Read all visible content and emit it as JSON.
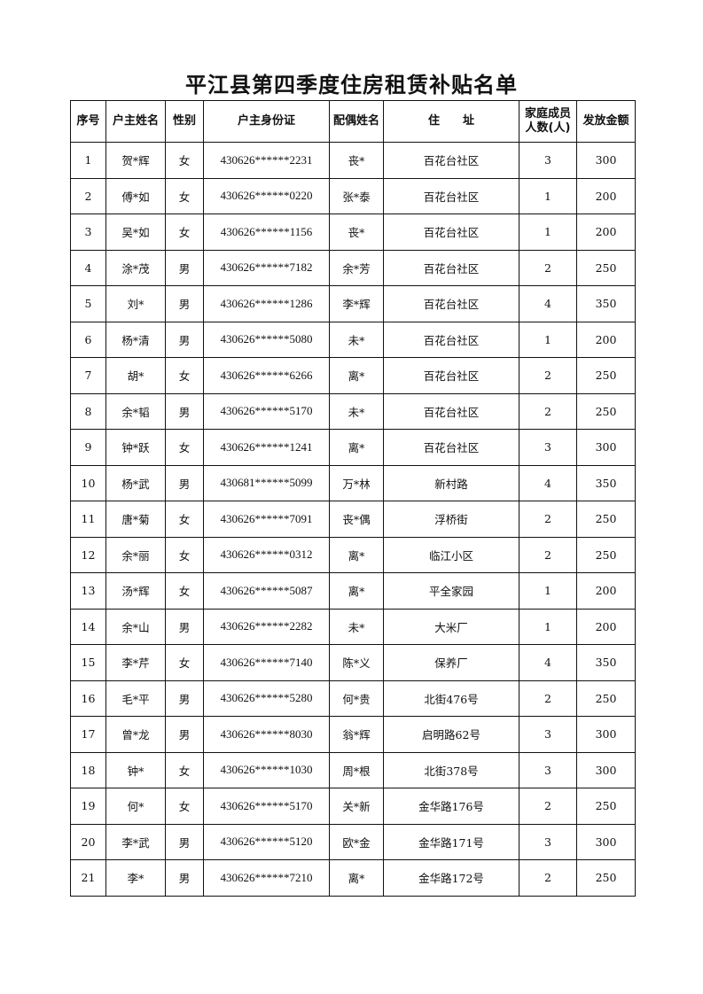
{
  "title": "平江县第四季度住房租赁补贴名单",
  "headers": [
    "序号",
    "户主姓名",
    "性别",
    "户主身份证",
    "配偶姓名",
    "住　　址",
    "家庭成员人数(人)",
    "发放金额"
  ],
  "rows": [
    [
      "1",
      "贺*辉",
      "女",
      "430626******2231",
      "丧*",
      "百花台社区",
      "3",
      "300"
    ],
    [
      "2",
      "傅*如",
      "女",
      "430626******0220",
      "张*泰",
      "百花台社区",
      "1",
      "200"
    ],
    [
      "3",
      "吴*如",
      "女",
      "430626******1156",
      "丧*",
      "百花台社区",
      "1",
      "200"
    ],
    [
      "4",
      "涂*茂",
      "男",
      "430626******7182",
      "余*芳",
      "百花台社区",
      "2",
      "250"
    ],
    [
      "5",
      "刘*",
      "男",
      "430626******1286",
      "李*辉",
      "百花台社区",
      "4",
      "350"
    ],
    [
      "6",
      "杨*清",
      "男",
      "430626******5080",
      "未*",
      "百花台社区",
      "1",
      "200"
    ],
    [
      "7",
      "胡*",
      "女",
      "430626******6266",
      "离*",
      "百花台社区",
      "2",
      "250"
    ],
    [
      "8",
      "余*韬",
      "男",
      "430626******5170",
      "未*",
      "百花台社区",
      "2",
      "250"
    ],
    [
      "9",
      "钟*跃",
      "女",
      "430626******1241",
      "离*",
      "百花台社区",
      "3",
      "300"
    ],
    [
      "10",
      "杨*武",
      "男",
      "430681******5099",
      "万*林",
      "新村路",
      "4",
      "350"
    ],
    [
      "11",
      "唐*菊",
      "女",
      "430626******7091",
      "丧*偶",
      "浮桥街",
      "2",
      "250"
    ],
    [
      "12",
      "余*丽",
      "女",
      "430626******0312",
      "离*",
      "临江小区",
      "2",
      "250"
    ],
    [
      "13",
      "汤*辉",
      "女",
      "430626******5087",
      "离*",
      "平全家园",
      "1",
      "200"
    ],
    [
      "14",
      "余*山",
      "男",
      "430626******2282",
      "未*",
      "大米厂",
      "1",
      "200"
    ],
    [
      "15",
      "李*芹",
      "女",
      "430626******7140",
      "陈*义",
      "保养厂",
      "4",
      "350"
    ],
    [
      "16",
      "毛*平",
      "男",
      "430626******5280",
      "何*贵",
      "北街476号",
      "2",
      "250"
    ],
    [
      "17",
      "曾*龙",
      "男",
      "430626******8030",
      "翁*辉",
      "启明路62号",
      "3",
      "300"
    ],
    [
      "18",
      "钟*",
      "女",
      "430626******1030",
      "周*根",
      "北街378号",
      "3",
      "300"
    ],
    [
      "19",
      "何*",
      "女",
      "430626******5170",
      "关*新",
      "金华路176号",
      "2",
      "250"
    ],
    [
      "20",
      "李*武",
      "男",
      "430626******5120",
      "欧*金",
      "金华路171号",
      "3",
      "300"
    ],
    [
      "21",
      "李*",
      "男",
      "430626******7210",
      "离*",
      "金华路172号",
      "2",
      "250"
    ]
  ]
}
